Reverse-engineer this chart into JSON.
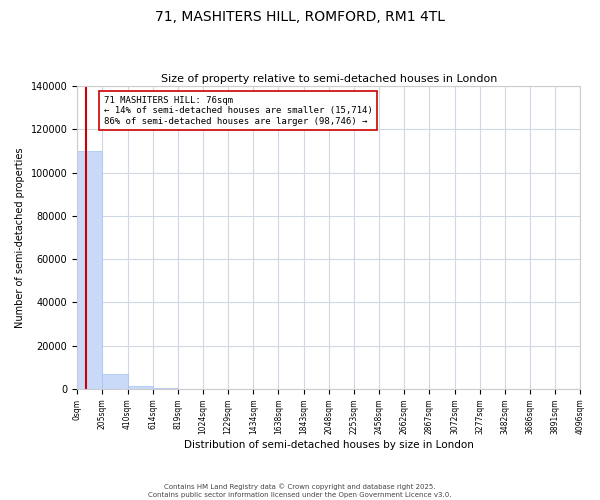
{
  "title": "71, MASHITERS HILL, ROMFORD, RM1 4TL",
  "subtitle": "Size of property relative to semi-detached houses in London",
  "xlabel": "Distribution of semi-detached houses by size in London",
  "ylabel": "Number of semi-detached properties",
  "annotation_text": "71 MASHITERS HILL: 76sqm\n← 14% of semi-detached houses are smaller (15,714)\n86% of semi-detached houses are larger (98,746) →",
  "bin_edges": [
    0,
    205,
    410,
    614,
    819,
    1024,
    1229,
    1434,
    1638,
    1843,
    2048,
    2253,
    2458,
    2662,
    2867,
    3072,
    3277,
    3482,
    3686,
    3891,
    4096
  ],
  "bin_counts": [
    110000,
    7000,
    1200,
    400,
    200,
    120,
    80,
    60,
    40,
    30,
    25,
    20,
    18,
    15,
    12,
    10,
    8,
    7,
    6,
    5
  ],
  "bar_color": "#c9daf8",
  "bar_edge_color": "#a4c2f4",
  "vline_color": "#cc0000",
  "vline_x": 76,
  "annotation_box_color": "#ffffff",
  "annotation_box_edge": "#cc0000",
  "grid_color": "#d0d8e8",
  "background_color": "#ffffff",
  "footer_text": "Contains HM Land Registry data © Crown copyright and database right 2025.\nContains public sector information licensed under the Open Government Licence v3.0.",
  "ylim": [
    0,
    140000
  ],
  "yticks": [
    0,
    20000,
    40000,
    60000,
    80000,
    100000,
    120000,
    140000
  ],
  "ytick_labels": [
    "0",
    "20000",
    "40000",
    "60000",
    "80000",
    "100000",
    "120000",
    "140000"
  ],
  "tick_labels_x": [
    "0sqm",
    "205sqm",
    "410sqm",
    "614sqm",
    "819sqm",
    "1024sqm",
    "1229sqm",
    "1434sqm",
    "1638sqm",
    "1843sqm",
    "2048sqm",
    "2253sqm",
    "2458sqm",
    "2662sqm",
    "2867sqm",
    "3072sqm",
    "3277sqm",
    "3482sqm",
    "3686sqm",
    "3891sqm",
    "4096sqm"
  ]
}
